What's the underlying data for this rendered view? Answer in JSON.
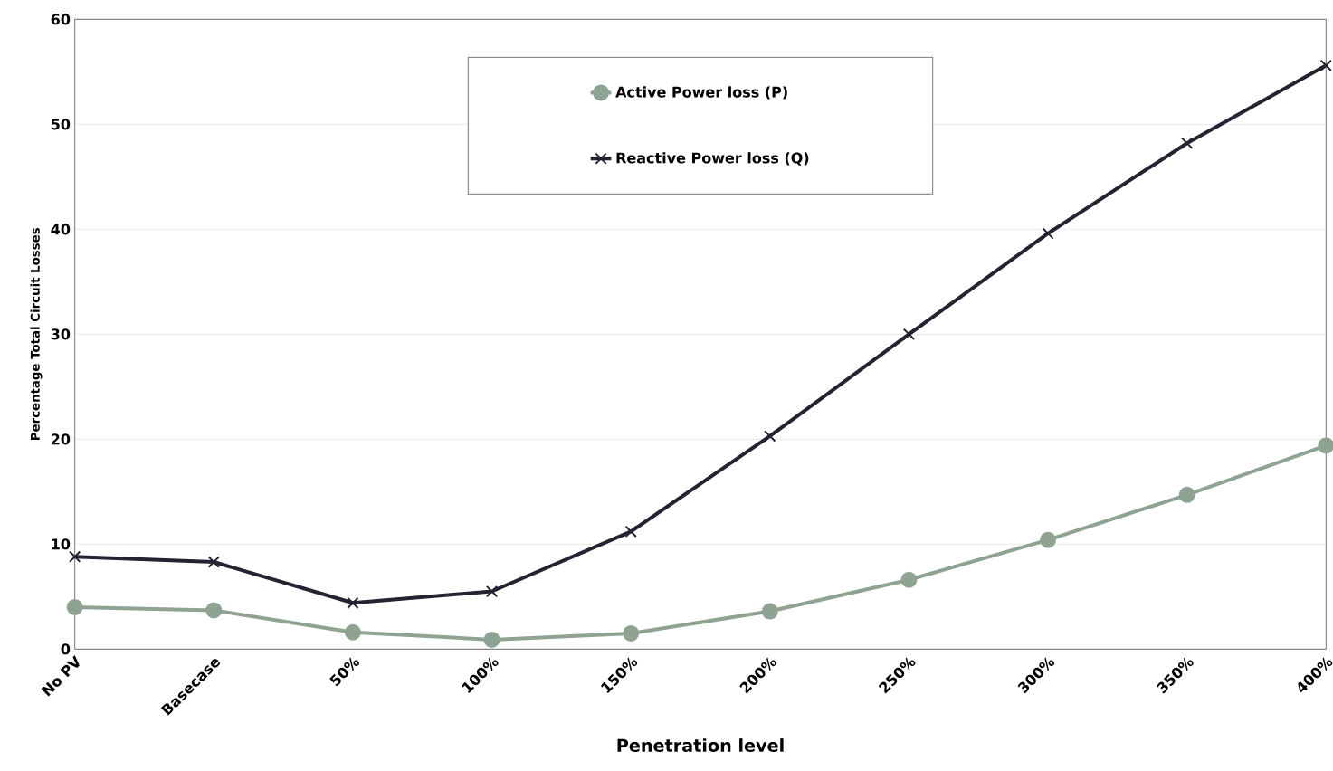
{
  "chart_data": {
    "type": "line",
    "xlabel": "Penetration level",
    "ylabel": "Percentage Total Circuit Losses",
    "categories": [
      "No PV",
      "Basecase",
      "50%",
      "100%",
      "150%",
      "200%",
      "250%",
      "300%",
      "350%",
      "400%"
    ],
    "series": [
      {
        "name": "Active Power loss (P)",
        "color": "#8fa393",
        "marker": "circle",
        "values": [
          4.0,
          3.7,
          1.6,
          0.9,
          1.5,
          3.6,
          6.6,
          10.4,
          14.7,
          19.4
        ]
      },
      {
        "name": "Reactive Power loss (Q)",
        "color": "#262231",
        "marker": "cross",
        "values": [
          8.8,
          8.3,
          4.4,
          5.5,
          11.2,
          20.3,
          30.0,
          39.6,
          48.2,
          55.6
        ]
      }
    ],
    "ylim": [
      0,
      60
    ],
    "yticks": [
      0,
      10,
      20,
      30,
      40,
      50,
      60
    ],
    "grid": "y",
    "legend": "top",
    "line_style": "solid"
  }
}
